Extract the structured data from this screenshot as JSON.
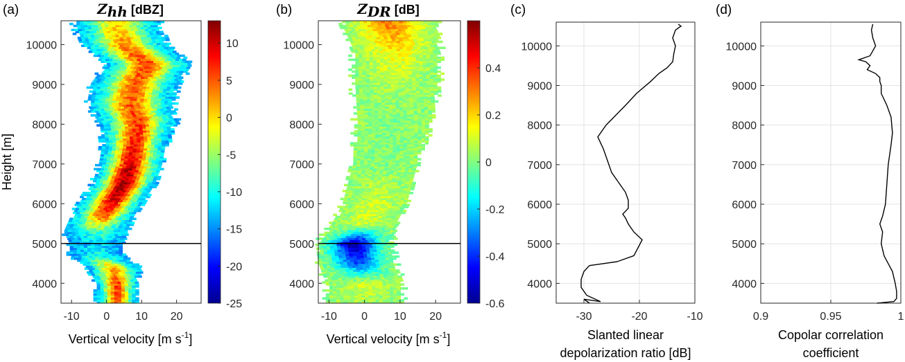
{
  "chart_data": [
    {
      "panel": "(a)",
      "type": "heatmap",
      "title_symbol": "Z",
      "title_subscript": "hh",
      "title_unit": " [dBZ]",
      "xlabel": "Vertical velocity [m s",
      "xlabel_sup": "-1",
      "xlabel_end": "]",
      "ylabel": "Height [m]",
      "xlim": [
        -13,
        27
      ],
      "ylim": [
        3500,
        10600
      ],
      "xticks": [
        "-10",
        "0",
        "10",
        "20"
      ],
      "xtick_values": [
        -10,
        0,
        10,
        20
      ],
      "yticks": [
        "4000",
        "5000",
        "6000",
        "7000",
        "8000",
        "9000",
        "10000"
      ],
      "ytick_values": [
        4000,
        5000,
        6000,
        7000,
        8000,
        9000,
        10000
      ],
      "reference_line_height": 5000,
      "colorbar": {
        "range": [
          -25,
          13
        ],
        "ticks": [
          "-25",
          "-20",
          "-15",
          "-10",
          "-5",
          "0",
          "5",
          "10"
        ],
        "tick_values": [
          -25,
          -20,
          -15,
          -10,
          -5,
          0,
          5,
          10
        ]
      },
      "profile": [
        {
          "h": 3500,
          "c": 3,
          "w": 4,
          "peak": 4
        },
        {
          "h": 4000,
          "c": 3,
          "w": 4,
          "peak": 6
        },
        {
          "h": 4400,
          "c": 2,
          "w": 5,
          "peak": 2
        },
        {
          "h": 4700,
          "c": -3,
          "w": 5,
          "peak": -10
        },
        {
          "h": 5000,
          "c": -3,
          "w": 5,
          "peak": -12
        },
        {
          "h": 5300,
          "c": -3,
          "w": 6,
          "peak": -8
        },
        {
          "h": 5700,
          "c": -1,
          "w": 6,
          "peak": 5
        },
        {
          "h": 6100,
          "c": 2,
          "w": 6,
          "peak": 10
        },
        {
          "h": 6500,
          "c": 5,
          "w": 6,
          "peak": 12
        },
        {
          "h": 7000,
          "c": 7,
          "w": 6,
          "peak": 10
        },
        {
          "h": 7500,
          "c": 8,
          "w": 6,
          "peak": 8
        },
        {
          "h": 8000,
          "c": 9,
          "w": 7,
          "peak": 6
        },
        {
          "h": 8500,
          "c": 7,
          "w": 8,
          "peak": 5
        },
        {
          "h": 9000,
          "c": 8,
          "w": 8,
          "peak": 4
        },
        {
          "h": 9500,
          "c": 12,
          "w": 8,
          "peak": 6
        },
        {
          "h": 10000,
          "c": 5,
          "w": 8,
          "peak": 3
        },
        {
          "h": 10500,
          "c": 3,
          "w": 8,
          "peak": 0
        }
      ]
    },
    {
      "panel": "(b)",
      "type": "heatmap",
      "title_symbol": "Z",
      "title_subscript": "DR",
      "title_unit": " [dB]",
      "xlabel": "Vertical velocity [m s",
      "xlabel_sup": "-1",
      "xlabel_end": "]",
      "xlim": [
        -13,
        27
      ],
      "ylim": [
        3500,
        10600
      ],
      "xticks": [
        "-10",
        "0",
        "10",
        "20"
      ],
      "xtick_values": [
        -10,
        0,
        10,
        20
      ],
      "yticks": [
        "4000",
        "5000",
        "6000",
        "7000",
        "8000",
        "9000",
        "10000"
      ],
      "ytick_values": [
        4000,
        5000,
        6000,
        7000,
        8000,
        9000,
        10000
      ],
      "reference_line_height": 5000,
      "colorbar": {
        "range": [
          -0.6,
          0.6
        ],
        "ticks": [
          "-0.6",
          "-0.4",
          "-0.2",
          "0",
          "0.2",
          "0.4"
        ],
        "tick_values": [
          -0.6,
          -0.4,
          -0.2,
          0,
          0.2,
          0.4
        ]
      },
      "profile": [
        {
          "h": 3500,
          "c": 0,
          "w": 7,
          "peak": 0.05
        },
        {
          "h": 4000,
          "c": 0,
          "w": 7,
          "peak": 0.1
        },
        {
          "h": 4500,
          "c": -2,
          "w": 7,
          "peak": -0.35
        },
        {
          "h": 5000,
          "c": -3,
          "w": 7,
          "peak": -0.55
        },
        {
          "h": 5500,
          "c": 0,
          "w": 6,
          "peak": 0.1
        },
        {
          "h": 6000,
          "c": 3,
          "w": 6,
          "peak": 0.1
        },
        {
          "h": 7000,
          "c": 6,
          "w": 6,
          "peak": 0.0
        },
        {
          "h": 8000,
          "c": 8,
          "w": 7,
          "peak": 0.0
        },
        {
          "h": 9000,
          "c": 9,
          "w": 8,
          "peak": 0.05
        },
        {
          "h": 9800,
          "c": 9,
          "w": 8,
          "peak": 0.15
        },
        {
          "h": 10500,
          "c": 7,
          "w": 9,
          "peak": 0.3
        }
      ]
    },
    {
      "panel": "(c)",
      "type": "line",
      "xlabel": "Slanted linear",
      "xlabel2": "depolarization ratio [dB]",
      "xlim": [
        -35,
        -10
      ],
      "ylim": [
        3500,
        10600
      ],
      "xticks": [
        "-30",
        "-20",
        "-10"
      ],
      "xtick_values": [
        -30,
        -20,
        -10
      ],
      "yticks": [
        "4000",
        "5000",
        "6000",
        "7000",
        "8000",
        "9000",
        "10000"
      ],
      "ytick_values": [
        4000,
        5000,
        6000,
        7000,
        8000,
        9000,
        10000
      ],
      "x": [
        -29,
        -30,
        -27,
        -29.5,
        -30.5,
        -30.5,
        -30,
        -29,
        -24,
        -21,
        -19.5,
        -21,
        -22,
        -22.5,
        -23,
        -22,
        -22,
        -22.5,
        -23.5,
        -25,
        -25.5,
        -26,
        -26.5,
        -27,
        -27.5,
        -26.5,
        -26,
        -22.5,
        -20.5,
        -18,
        -16.5,
        -15,
        -14,
        -13.8,
        -13.5,
        -14,
        -13.5,
        -12.5,
        -13
      ],
      "y": [
        3500,
        3600,
        3540,
        3700,
        3900,
        4100,
        4300,
        4450,
        4550,
        4700,
        5100,
        5300,
        5500,
        5650,
        5750,
        5900,
        6100,
        6300,
        6500,
        6800,
        7000,
        7200,
        7400,
        7550,
        7700,
        7900,
        8000,
        8500,
        8800,
        9100,
        9300,
        9450,
        9600,
        9800,
        10000,
        10200,
        10400,
        10500,
        10550
      ]
    },
    {
      "panel": "(d)",
      "type": "line",
      "xlabel": "Copolar correlation",
      "xlabel2": "coefficient",
      "xlim": [
        0.9,
        1.0
      ],
      "ylim": [
        3500,
        10600
      ],
      "xticks": [
        "0.9",
        "0.95",
        "1"
      ],
      "xtick_values": [
        0.9,
        0.95,
        1.0
      ],
      "yticks": [
        "4000",
        "5000",
        "6000",
        "7000",
        "8000",
        "9000",
        "10000"
      ],
      "ytick_values": [
        4000,
        5000,
        6000,
        7000,
        8000,
        9000,
        10000
      ],
      "x": [
        0.983,
        0.995,
        0.997,
        0.997,
        0.996,
        0.994,
        0.991,
        0.988,
        0.986,
        0.987,
        0.985,
        0.987,
        0.989,
        0.99,
        0.991,
        0.993,
        0.994,
        0.993,
        0.99,
        0.986,
        0.986,
        0.985,
        0.985,
        0.982,
        0.976,
        0.978,
        0.975,
        0.97,
        0.978,
        0.982,
        0.98,
        0.979,
        0.98
      ],
      "y": [
        3500,
        3540,
        3620,
        3800,
        4000,
        4300,
        4500,
        4700,
        5000,
        5300,
        5500,
        5700,
        6000,
        6500,
        7000,
        7500,
        7800,
        8200,
        8500,
        8800,
        9000,
        9100,
        9200,
        9300,
        9400,
        9500,
        9600,
        9650,
        9750,
        10000,
        10200,
        10400,
        10550
      ]
    }
  ]
}
